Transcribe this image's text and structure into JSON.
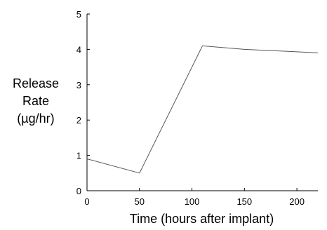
{
  "chart_data": {
    "type": "line",
    "title": "",
    "xlabel": "Time (hours after implant)",
    "ylabel_lines": [
      "Release",
      "Rate",
      "(µg/hr)"
    ],
    "xlim": [
      0,
      220
    ],
    "ylim": [
      0,
      5
    ],
    "x_ticks": [
      0,
      50,
      100,
      150,
      200
    ],
    "y_ticks": [
      0,
      1,
      2,
      3,
      4,
      5
    ],
    "grid": false,
    "series": [
      {
        "x": [
          0,
          50,
          110,
          150,
          200,
          220
        ],
        "y": [
          0.9,
          0.5,
          4.1,
          4.0,
          3.93,
          3.9
        ]
      }
    ],
    "colors": {
      "line": "#555555",
      "axis": "#000000"
    }
  }
}
